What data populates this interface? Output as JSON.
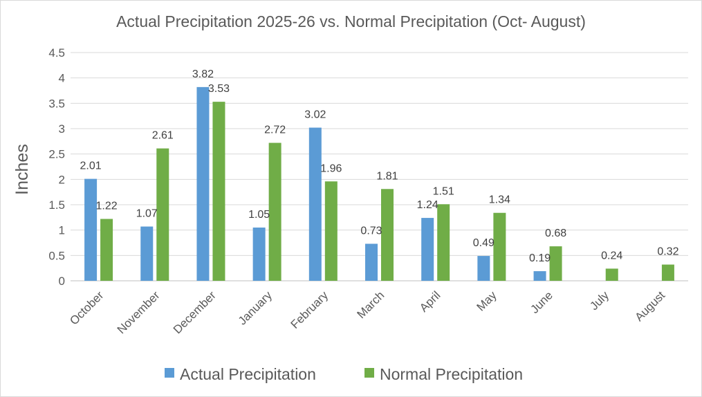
{
  "chart_data": {
    "type": "bar",
    "title": "Actual Precipitation 2025-26 vs. Normal Precipitation (Oct- August)",
    "ylabel": "Inches",
    "xlabel": "",
    "ylim": [
      0,
      4.5
    ],
    "yticks": [
      "0",
      "0.5",
      "1",
      "1.5",
      "2",
      "2.5",
      "3",
      "3.5",
      "4",
      "4.5"
    ],
    "grid": true,
    "legend_position": "bottom",
    "categories": [
      "October",
      "November",
      "December",
      "January",
      "February",
      "March",
      "April",
      "May",
      "June",
      "July",
      "August"
    ],
    "series": [
      {
        "name": "Actual Precipitation",
        "color": "#5b9bd5",
        "values": [
          2.01,
          1.07,
          3.82,
          1.05,
          3.02,
          0.73,
          1.24,
          0.49,
          0.19,
          null,
          null
        ],
        "labels": [
          "2.01",
          "1.07",
          "3.82",
          "1.05",
          "3.02",
          "0.73",
          "1.24",
          "0.49",
          "0.19",
          null,
          null
        ]
      },
      {
        "name": "Normal Precipitation",
        "color": "#70ad47",
        "values": [
          1.22,
          2.61,
          3.53,
          2.72,
          1.96,
          1.81,
          1.51,
          1.34,
          0.68,
          0.24,
          0.32
        ],
        "labels": [
          "1.22",
          "2.61",
          "3.53",
          "2.72",
          "1.96",
          "1.81",
          "1.51",
          "1.34",
          "0.68",
          "0.24",
          "0.32"
        ]
      }
    ]
  }
}
